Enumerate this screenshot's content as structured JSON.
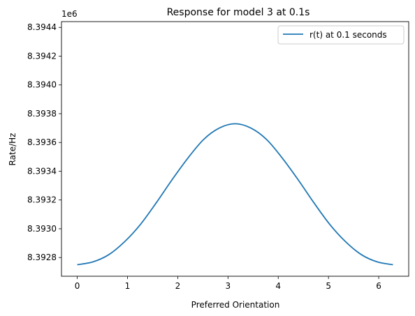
{
  "chart_data": {
    "type": "line",
    "title": "Response for model 3 at 0.1s",
    "xlabel": "Preferred Orientation",
    "ylabel": "Rate/Hz",
    "offset_label": "1e6",
    "x_ticks": [
      0,
      1,
      2,
      3,
      4,
      5,
      6
    ],
    "y_ticks": [
      8.3928,
      8.393,
      8.3932,
      8.3934,
      8.3936,
      8.3938,
      8.394,
      8.3942,
      8.3944
    ],
    "xlim": [
      -0.314,
      6.597
    ],
    "ylim": [
      8.39267,
      8.39444
    ],
    "legend_position": "upper right",
    "series": [
      {
        "name": "r(t) at 0.1 seconds",
        "color": "#1f77b4",
        "x": [
          0,
          0.314,
          0.628,
          0.942,
          1.257,
          1.571,
          1.885,
          2.199,
          2.513,
          2.827,
          3.142,
          3.456,
          3.77,
          4.084,
          4.398,
          4.712,
          5.027,
          5.341,
          5.655,
          5.969,
          6.283
        ],
        "values": [
          8.39275,
          8.39277,
          8.39282,
          8.39291,
          8.39303,
          8.39318,
          8.39334,
          8.39349,
          8.39362,
          8.3937,
          8.39373,
          8.3937,
          8.39362,
          8.39349,
          8.39334,
          8.39318,
          8.39303,
          8.39291,
          8.39282,
          8.39277,
          8.39275
        ]
      }
    ]
  }
}
